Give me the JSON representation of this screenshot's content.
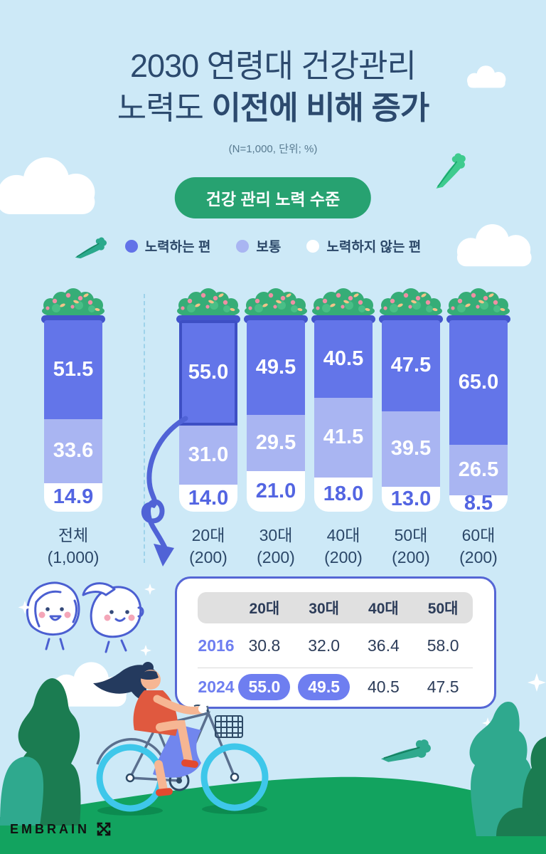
{
  "header": {
    "title_line1": "2030 연령대 건강관리",
    "title_line2_regular": "노력도 ",
    "title_line2_bold": "이전에 비해 증가",
    "subtitle": "(N=1,000, 단위; %)",
    "badge": "건강 관리 노력 수준"
  },
  "legend": {
    "items": [
      {
        "label": "노력하는 편",
        "color": "#6272e8"
      },
      {
        "label": "보통",
        "color": "#a9b5f2"
      },
      {
        "label": "노력하지 않는 편",
        "color": "#ffffff"
      }
    ]
  },
  "chart_data": {
    "type": "bar",
    "stacked": true,
    "unit": "%",
    "title": "건강 관리 노력 수준",
    "categories": [
      "전체",
      "20대",
      "30대",
      "40대",
      "50대",
      "60대"
    ],
    "category_counts": [
      "(1,000)",
      "(200)",
      "(200)",
      "(200)",
      "(200)",
      "(200)"
    ],
    "series": [
      {
        "name": "노력하는 편",
        "color": "#6375e9",
        "values": [
          51.5,
          55.0,
          49.5,
          40.5,
          47.5,
          65.0
        ]
      },
      {
        "name": "보통",
        "color": "#a9b5f2",
        "values": [
          33.6,
          31.0,
          29.5,
          41.5,
          39.5,
          26.5
        ]
      },
      {
        "name": "노력하지 않는 편",
        "color": "#ffffff",
        "values": [
          14.9,
          14.0,
          21.0,
          18.0,
          13.0,
          8.5
        ]
      }
    ],
    "highlight": {
      "category": "20대",
      "series": "노력하는 편"
    },
    "ylim": [
      0,
      100
    ],
    "legend_position": "top",
    "grid": false
  },
  "comparison_table": {
    "columns": [
      "20대",
      "30대",
      "40대",
      "50대"
    ],
    "rows": [
      {
        "label": "2016",
        "values": [
          30.8,
          32.0,
          36.4,
          58.0
        ],
        "highlighted": [
          false,
          false,
          false,
          false
        ]
      },
      {
        "label": "2024",
        "values": [
          55.0,
          49.5,
          40.5,
          47.5
        ],
        "highlighted": [
          true,
          true,
          false,
          false
        ]
      }
    ]
  },
  "footer": {
    "logo_text": "EMBRAIN"
  },
  "colors": {
    "background": "#cde9f7",
    "title_text": "#2c4a6e",
    "badge_green": "#27a271",
    "segment_dark": "#6375e9",
    "segment_light": "#a9b5f2",
    "segment_white": "#ffffff",
    "segment_white_text": "#5365e2",
    "bar_rim": "#4355cb",
    "highlight_border": "#3d4fc4",
    "table_border": "#5566d5",
    "table_header_bg": "#e0e0e0",
    "year_blue": "#6e7ef0",
    "grass": "#12a35f",
    "bush_dark": "#1b7c51",
    "bush_teal": "#2fa98e",
    "leaf_green": "#3ecb8e"
  }
}
